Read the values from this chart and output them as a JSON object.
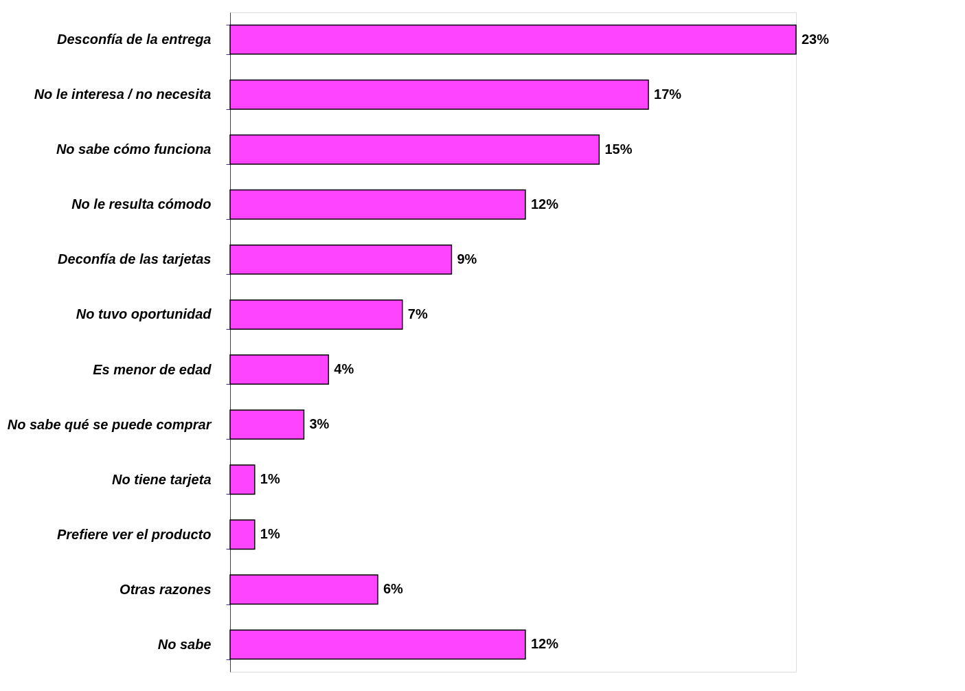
{
  "chart_data": {
    "type": "bar",
    "orientation": "horizontal",
    "categories": [
      "Desconfía de la entrega",
      "No le interesa / no necesita",
      "No sabe cómo funciona",
      "No le resulta cómodo",
      "Deconfía de las tarjetas",
      "No tuvo oportunidad",
      "Es menor de edad",
      "No sabe qué se puede comprar",
      "No tiene tarjeta",
      "Prefiere ver el producto",
      "Otras razones",
      "No sabe"
    ],
    "values": [
      23,
      17,
      15,
      12,
      9,
      7,
      4,
      3,
      1,
      1,
      6,
      12
    ],
    "value_labels": [
      "23%",
      "17%",
      "15%",
      "12%",
      "9%",
      "7%",
      "4%",
      "3%",
      "1%",
      "1%",
      "6%",
      "12%"
    ],
    "color": "#ff44ff",
    "tick_labels": "y"
  }
}
